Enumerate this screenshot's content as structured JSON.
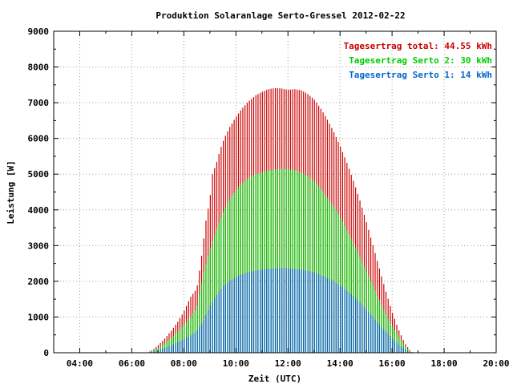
{
  "chart_data": {
    "type": "bar",
    "title": "Produktion Solaranlage Serto-Gressel 2012-02-22",
    "xlabel": "Zeit (UTC)",
    "ylabel": "Leistung [W]",
    "xlim": [
      3.0,
      20.0
    ],
    "ylim": [
      0,
      9000
    ],
    "x_ticks": [
      "04:00",
      "06:00",
      "08:00",
      "10:00",
      "12:00",
      "14:00",
      "16:00",
      "18:00",
      "20:00"
    ],
    "x_tick_values": [
      4,
      6,
      8,
      10,
      12,
      14,
      16,
      18,
      20
    ],
    "y_ticks": [
      "0",
      "1000",
      "2000",
      "3000",
      "4000",
      "5000",
      "6000",
      "7000",
      "8000",
      "9000"
    ],
    "y_tick_values": [
      0,
      1000,
      2000,
      3000,
      4000,
      5000,
      6000,
      7000,
      8000,
      9000
    ],
    "grid": true,
    "legend_position": "top-right",
    "series": [
      {
        "name": "Tagesertrag total: 44.55 kWh",
        "color": "#cc0000",
        "kind": "total",
        "anchors": [
          [
            6.6,
            0
          ],
          [
            6.8,
            80
          ],
          [
            7.0,
            200
          ],
          [
            7.25,
            380
          ],
          [
            7.5,
            600
          ],
          [
            7.75,
            850
          ],
          [
            8.0,
            1150
          ],
          [
            8.25,
            1550
          ],
          [
            8.5,
            1800
          ],
          [
            8.7,
            2800
          ],
          [
            8.85,
            3700
          ],
          [
            9.0,
            4300
          ],
          [
            9.1,
            5000
          ],
          [
            9.25,
            5300
          ],
          [
            9.4,
            5700
          ],
          [
            9.55,
            6000
          ],
          [
            9.75,
            6300
          ],
          [
            10.0,
            6600
          ],
          [
            10.25,
            6850
          ],
          [
            10.5,
            7050
          ],
          [
            10.75,
            7200
          ],
          [
            11.0,
            7300
          ],
          [
            11.25,
            7380
          ],
          [
            11.5,
            7410
          ],
          [
            11.75,
            7400
          ],
          [
            12.0,
            7360
          ],
          [
            12.25,
            7380
          ],
          [
            12.5,
            7350
          ],
          [
            12.75,
            7250
          ],
          [
            13.0,
            7100
          ],
          [
            13.25,
            6850
          ],
          [
            13.5,
            6550
          ],
          [
            13.75,
            6200
          ],
          [
            14.0,
            5800
          ],
          [
            14.25,
            5350
          ],
          [
            14.5,
            4850
          ],
          [
            14.75,
            4300
          ],
          [
            15.0,
            3700
          ],
          [
            15.25,
            3050
          ],
          [
            15.5,
            2400
          ],
          [
            15.75,
            1750
          ],
          [
            16.0,
            1150
          ],
          [
            16.25,
            650
          ],
          [
            16.5,
            250
          ],
          [
            16.7,
            60
          ],
          [
            16.8,
            0
          ]
        ]
      },
      {
        "name": "Tagesertrag Serto 2: 30 kWh",
        "color": "#00cc00",
        "kind": "serto2",
        "anchors": [
          [
            6.6,
            0
          ],
          [
            6.8,
            60
          ],
          [
            7.0,
            130
          ],
          [
            7.25,
            250
          ],
          [
            7.5,
            400
          ],
          [
            7.75,
            580
          ],
          [
            8.0,
            780
          ],
          [
            8.25,
            1000
          ],
          [
            8.5,
            1250
          ],
          [
            8.75,
            2200
          ],
          [
            9.0,
            2900
          ],
          [
            9.25,
            3450
          ],
          [
            9.5,
            3900
          ],
          [
            9.75,
            4300
          ],
          [
            10.0,
            4550
          ],
          [
            10.25,
            4750
          ],
          [
            10.5,
            4900
          ],
          [
            10.75,
            5000
          ],
          [
            11.0,
            5050
          ],
          [
            11.25,
            5100
          ],
          [
            11.5,
            5130
          ],
          [
            11.75,
            5150
          ],
          [
            12.0,
            5140
          ],
          [
            12.25,
            5110
          ],
          [
            12.5,
            5050
          ],
          [
            12.75,
            4950
          ],
          [
            13.0,
            4800
          ],
          [
            13.25,
            4600
          ],
          [
            13.5,
            4350
          ],
          [
            13.75,
            4100
          ],
          [
            14.0,
            3800
          ],
          [
            14.25,
            3450
          ],
          [
            14.5,
            3100
          ],
          [
            14.75,
            2700
          ],
          [
            15.0,
            2300
          ],
          [
            15.25,
            1900
          ],
          [
            15.5,
            1500
          ],
          [
            15.75,
            1100
          ],
          [
            16.0,
            750
          ],
          [
            16.25,
            450
          ],
          [
            16.5,
            180
          ],
          [
            16.7,
            40
          ],
          [
            16.8,
            0
          ]
        ]
      },
      {
        "name": "Tagesertrag Serto 1: 14 kWh",
        "color": "#0066cc",
        "kind": "serto1",
        "anchors": [
          [
            6.6,
            0
          ],
          [
            6.8,
            30
          ],
          [
            7.0,
            70
          ],
          [
            7.25,
            130
          ],
          [
            7.5,
            200
          ],
          [
            7.75,
            290
          ],
          [
            8.0,
            380
          ],
          [
            8.25,
            480
          ],
          [
            8.5,
            600
          ],
          [
            8.75,
            900
          ],
          [
            9.0,
            1300
          ],
          [
            9.25,
            1600
          ],
          [
            9.5,
            1850
          ],
          [
            9.75,
            2000
          ],
          [
            10.0,
            2120
          ],
          [
            10.25,
            2200
          ],
          [
            10.5,
            2260
          ],
          [
            10.75,
            2300
          ],
          [
            11.0,
            2330
          ],
          [
            11.25,
            2350
          ],
          [
            11.5,
            2360
          ],
          [
            11.75,
            2370
          ],
          [
            12.0,
            2360
          ],
          [
            12.25,
            2350
          ],
          [
            12.5,
            2330
          ],
          [
            12.75,
            2300
          ],
          [
            13.0,
            2250
          ],
          [
            13.25,
            2180
          ],
          [
            13.5,
            2100
          ],
          [
            13.75,
            2000
          ],
          [
            14.0,
            1880
          ],
          [
            14.25,
            1750
          ],
          [
            14.5,
            1600
          ],
          [
            14.75,
            1420
          ],
          [
            15.0,
            1220
          ],
          [
            15.25,
            1020
          ],
          [
            15.5,
            800
          ],
          [
            15.75,
            600
          ],
          [
            16.0,
            400
          ],
          [
            16.25,
            230
          ],
          [
            16.5,
            100
          ],
          [
            16.7,
            20
          ],
          [
            16.8,
            0
          ]
        ]
      }
    ]
  }
}
